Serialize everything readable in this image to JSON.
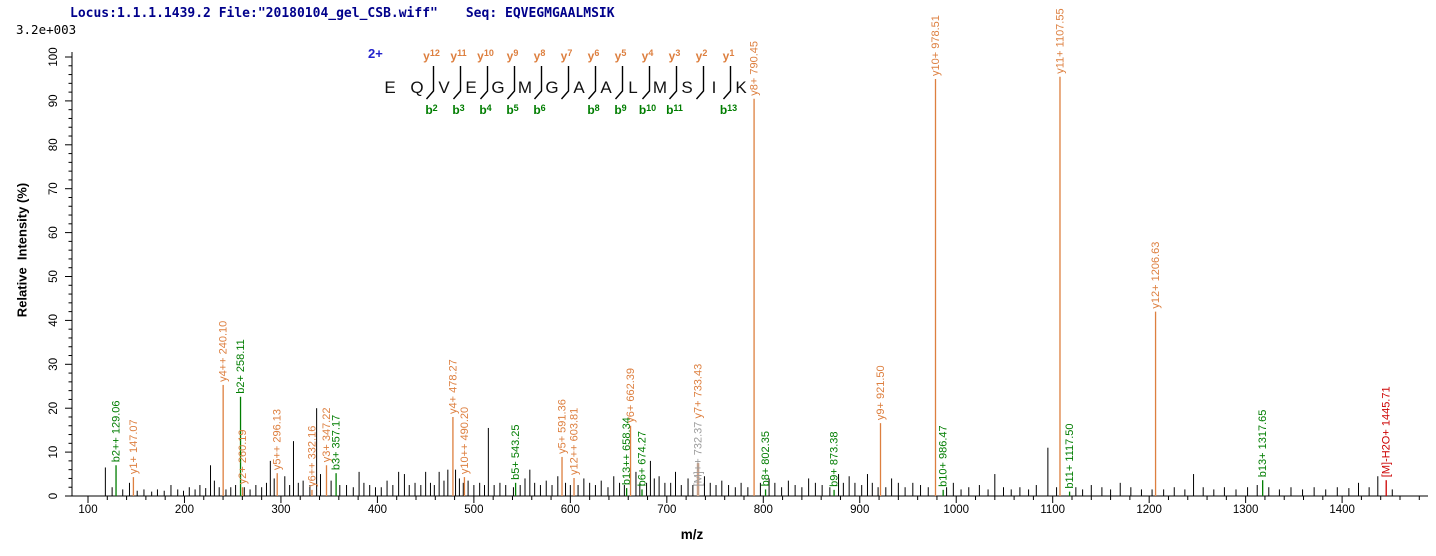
{
  "header": {
    "locus_file": "Locus:1.1.1.1439.2 File:\"20180104_gel_CSB.wiff\"",
    "seq": "Seq: EQVEGMGAALMSIK",
    "intensity_scale": "3.2e+003"
  },
  "colors": {
    "y_ion": "#dd7f3f",
    "b_ion": "#007d00",
    "precursor_label": "#9c9c9c",
    "precursor_peak": "#c9a189",
    "neutral_loss": "#cc0000",
    "header_text": "#00008b",
    "charge": "#2222cc",
    "peak": "#000000",
    "axis": "#000000"
  },
  "chart_data": {
    "type": "bar",
    "subtype": "ms2-spectrum",
    "xlabel": "m/z",
    "ylabel": "Relative  Intensity (%)",
    "intensity_scale": "3.2e+003",
    "xlim": [
      83,
      1489
    ],
    "ylim": [
      0,
      100
    ],
    "x_ticks": [
      100,
      200,
      300,
      400,
      500,
      600,
      700,
      800,
      900,
      1000,
      1100,
      1200,
      1300,
      1400
    ],
    "y_ticks": [
      0,
      10,
      20,
      30,
      40,
      50,
      60,
      70,
      80,
      90,
      100
    ],
    "x_minor_step": 20,
    "y_minor_step": 2,
    "grid": false,
    "sequence": {
      "charge": "2+",
      "residues": [
        "E",
        "Q",
        "V",
        "E",
        "G",
        "M",
        "G",
        "A",
        "A",
        "L",
        "M",
        "S",
        "I",
        "K"
      ],
      "gaps": [
        null,
        {
          "y": "y12",
          "b": "b2"
        },
        {
          "y": "y11",
          "b": "b3"
        },
        {
          "y": "y10",
          "b": "b4"
        },
        {
          "y": "y9",
          "b": "b5"
        },
        {
          "y": "y8",
          "b": "b6"
        },
        {
          "y": "y7",
          "b": null
        },
        {
          "y": "y6",
          "b": "b8"
        },
        {
          "y": "y5",
          "b": "b9"
        },
        {
          "y": "y4",
          "b": "b10"
        },
        {
          "y": "y3",
          "b": "b11"
        },
        {
          "y": "y2",
          "b": null
        },
        {
          "y": "y1",
          "b": "b13"
        }
      ]
    },
    "labeled_peaks": [
      {
        "ion": "b2++",
        "mz": "129.06",
        "intensity": 7,
        "series": "b"
      },
      {
        "ion": "y1+",
        "mz": "147.07",
        "intensity": 4.3,
        "series": "y"
      },
      {
        "ion": "y4++",
        "mz": "240.10",
        "intensity": 25.3,
        "series": "y"
      },
      {
        "ion": "b2+",
        "mz": "258.11",
        "intensity": 22.6,
        "series": "b"
      },
      {
        "ion": "y2+",
        "mz": "260.19",
        "intensity": 2,
        "series": "y"
      },
      {
        "ion": "y5++",
        "mz": "296.13",
        "intensity": 5.2,
        "series": "y"
      },
      {
        "ion": "y6++",
        "mz": "332.16",
        "intensity": 1.4,
        "series": "y"
      },
      {
        "ion": "y3+",
        "mz": "347.22",
        "intensity": 7,
        "series": "y"
      },
      {
        "ion": "b3+",
        "mz": "357.17",
        "intensity": 5.2,
        "series": "b"
      },
      {
        "ion": "y4+",
        "mz": "478.27",
        "intensity": 18,
        "series": "y"
      },
      {
        "ion": "y10++",
        "mz": "490.20",
        "intensity": 4.3,
        "series": "y"
      },
      {
        "ion": "b5+",
        "mz": "543.25",
        "intensity": 3,
        "series": "b"
      },
      {
        "ion": "y5+",
        "mz": "591.36",
        "intensity": 8.9,
        "series": "y"
      },
      {
        "ion": "y12++",
        "mz": "603.81",
        "intensity": 4.1,
        "series": "y"
      },
      {
        "ion": "b13++",
        "mz": "658.34",
        "intensity": 1.8,
        "series": "b"
      },
      {
        "ion": "y6+",
        "mz": "662.39",
        "intensity": 16,
        "series": "y"
      },
      {
        "ion": "b6+",
        "mz": "674.27",
        "intensity": 1.5,
        "series": "b"
      },
      {
        "ion": "[M]++",
        "mz": "732.37",
        "intensity": 7.5,
        "series": "precursor",
        "label_from": 1.5,
        "stack_ion": "y7+",
        "stack_mz": "733.43"
      },
      {
        "ion": "y8+",
        "mz": "790.45",
        "intensity": 90.5,
        "series": "y"
      },
      {
        "ion": "b8+",
        "mz": "802.35",
        "intensity": 1.5,
        "series": "b"
      },
      {
        "ion": "b9+",
        "mz": "873.38",
        "intensity": 1.4,
        "series": "b"
      },
      {
        "ion": "y9+",
        "mz": "921.50",
        "intensity": 16.6,
        "series": "y"
      },
      {
        "ion": "y10+",
        "mz": "978.51",
        "intensity": 95,
        "series": "y"
      },
      {
        "ion": "b10+",
        "mz": "986.47",
        "intensity": 1.4,
        "series": "b"
      },
      {
        "ion": "y11+",
        "mz": "1107.55",
        "intensity": 95.5,
        "series": "y"
      },
      {
        "ion": "b11+",
        "mz": "1117.50",
        "intensity": 1,
        "series": "b"
      },
      {
        "ion": "y12+",
        "mz": "1206.63",
        "intensity": 42,
        "series": "y"
      },
      {
        "ion": "b13+",
        "mz": "1317.65",
        "intensity": 3.6,
        "series": "b"
      },
      {
        "ion": "[M]-H2O+",
        "mz": "1445.71",
        "intensity": 3.6,
        "series": "neutral_loss"
      }
    ],
    "unlabeled_peaks": [
      [
        118,
        6.5
      ],
      [
        125,
        2
      ],
      [
        136,
        1.5
      ],
      [
        143,
        3
      ],
      [
        151,
        1.2
      ],
      [
        158,
        1.5
      ],
      [
        166,
        1
      ],
      [
        172,
        1.5
      ],
      [
        179,
        1.2
      ],
      [
        186,
        2.5
      ],
      [
        193,
        1.5
      ],
      [
        199,
        1.2
      ],
      [
        205,
        2
      ],
      [
        211,
        1.5
      ],
      [
        216,
        2.5
      ],
      [
        222,
        1.8
      ],
      [
        227,
        7
      ],
      [
        231,
        3.5
      ],
      [
        236,
        2
      ],
      [
        243,
        1.5
      ],
      [
        248,
        2
      ],
      [
        253,
        2.5
      ],
      [
        262,
        2
      ],
      [
        268,
        1.5
      ],
      [
        274,
        2.5
      ],
      [
        280,
        2
      ],
      [
        285,
        3
      ],
      [
        289,
        8
      ],
      [
        293,
        4
      ],
      [
        304,
        4.5
      ],
      [
        309,
        2.5
      ],
      [
        313,
        12.5
      ],
      [
        318,
        3
      ],
      [
        323,
        3.5
      ],
      [
        330,
        2.5
      ],
      [
        337,
        20
      ],
      [
        341,
        5
      ],
      [
        352,
        3.5
      ],
      [
        361,
        2.5
      ],
      [
        368,
        2.5
      ],
      [
        375,
        2
      ],
      [
        381,
        5.5
      ],
      [
        386,
        3
      ],
      [
        392,
        2.5
      ],
      [
        398,
        2
      ],
      [
        404,
        2
      ],
      [
        410,
        3.5
      ],
      [
        416,
        2.5
      ],
      [
        422,
        5.5
      ],
      [
        428,
        5
      ],
      [
        433,
        2.5
      ],
      [
        439,
        3
      ],
      [
        445,
        2.5
      ],
      [
        450,
        5.5
      ],
      [
        455,
        3
      ],
      [
        459,
        2.5
      ],
      [
        464,
        5.5
      ],
      [
        469,
        3.5
      ],
      [
        473,
        6
      ],
      [
        481,
        6
      ],
      [
        485,
        4
      ],
      [
        489,
        3
      ],
      [
        494,
        3.5
      ],
      [
        500,
        2.5
      ],
      [
        506,
        3
      ],
      [
        511,
        2.5
      ],
      [
        515,
        15.5
      ],
      [
        521,
        2.5
      ],
      [
        527,
        3
      ],
      [
        533,
        2.5
      ],
      [
        541,
        2
      ],
      [
        548,
        2.5
      ],
      [
        553,
        4
      ],
      [
        558,
        6
      ],
      [
        563,
        3
      ],
      [
        569,
        2.5
      ],
      [
        575,
        3.5
      ],
      [
        581,
        2.5
      ],
      [
        587,
        4.5
      ],
      [
        595,
        3
      ],
      [
        600,
        2.5
      ],
      [
        608,
        2.5
      ],
      [
        614,
        4
      ],
      [
        620,
        3
      ],
      [
        626,
        2.5
      ],
      [
        632,
        3.5
      ],
      [
        639,
        2
      ],
      [
        645,
        4.5
      ],
      [
        651,
        3
      ],
      [
        656,
        2.5
      ],
      [
        668,
        5.5
      ],
      [
        672,
        3
      ],
      [
        679,
        3
      ],
      [
        683,
        8
      ],
      [
        687,
        4
      ],
      [
        692,
        4.5
      ],
      [
        698,
        3
      ],
      [
        704,
        3
      ],
      [
        709,
        5.5
      ],
      [
        715,
        2.5
      ],
      [
        722,
        4
      ],
      [
        727,
        2.5
      ],
      [
        739,
        4.5
      ],
      [
        745,
        3
      ],
      [
        751,
        2.5
      ],
      [
        757,
        3.5
      ],
      [
        764,
        2.5
      ],
      [
        771,
        2
      ],
      [
        777,
        3
      ],
      [
        784,
        2
      ],
      [
        797,
        3
      ],
      [
        806,
        4
      ],
      [
        812,
        3
      ],
      [
        819,
        2
      ],
      [
        826,
        3.5
      ],
      [
        833,
        2.5
      ],
      [
        840,
        2
      ],
      [
        847,
        4
      ],
      [
        854,
        3
      ],
      [
        861,
        2.5
      ],
      [
        869,
        2
      ],
      [
        878,
        5
      ],
      [
        883,
        3
      ],
      [
        889,
        4.5
      ],
      [
        895,
        3
      ],
      [
        902,
        2.5
      ],
      [
        908,
        5
      ],
      [
        913,
        3
      ],
      [
        919,
        2
      ],
      [
        927,
        2
      ],
      [
        933,
        4
      ],
      [
        940,
        3
      ],
      [
        947,
        2
      ],
      [
        955,
        3
      ],
      [
        963,
        2.5
      ],
      [
        971,
        2
      ],
      [
        990,
        2
      ],
      [
        997,
        3
      ],
      [
        1005,
        1.5
      ],
      [
        1013,
        2
      ],
      [
        1024,
        2.5
      ],
      [
        1033,
        1.5
      ],
      [
        1040,
        5
      ],
      [
        1049,
        2
      ],
      [
        1057,
        1.5
      ],
      [
        1066,
        2
      ],
      [
        1075,
        1.5
      ],
      [
        1083,
        2.5
      ],
      [
        1095,
        11
      ],
      [
        1104,
        2
      ],
      [
        1124,
        2
      ],
      [
        1131,
        1.5
      ],
      [
        1140,
        2.5
      ],
      [
        1151,
        2
      ],
      [
        1160,
        1.5
      ],
      [
        1170,
        3
      ],
      [
        1181,
        2
      ],
      [
        1192,
        1.5
      ],
      [
        1203,
        1.5
      ],
      [
        1215,
        1.5
      ],
      [
        1226,
        2
      ],
      [
        1237,
        1.5
      ],
      [
        1246,
        5
      ],
      [
        1256,
        2
      ],
      [
        1267,
        1.5
      ],
      [
        1278,
        2
      ],
      [
        1290,
        1.5
      ],
      [
        1302,
        2
      ],
      [
        1312,
        2.5
      ],
      [
        1324,
        2
      ],
      [
        1335,
        1.5
      ],
      [
        1347,
        2
      ],
      [
        1359,
        1.5
      ],
      [
        1371,
        2
      ],
      [
        1383,
        1.5
      ],
      [
        1395,
        2
      ],
      [
        1407,
        1.8
      ],
      [
        1417,
        3
      ],
      [
        1428,
        2
      ],
      [
        1437,
        4.5
      ],
      [
        1452,
        1.5
      ]
    ]
  }
}
